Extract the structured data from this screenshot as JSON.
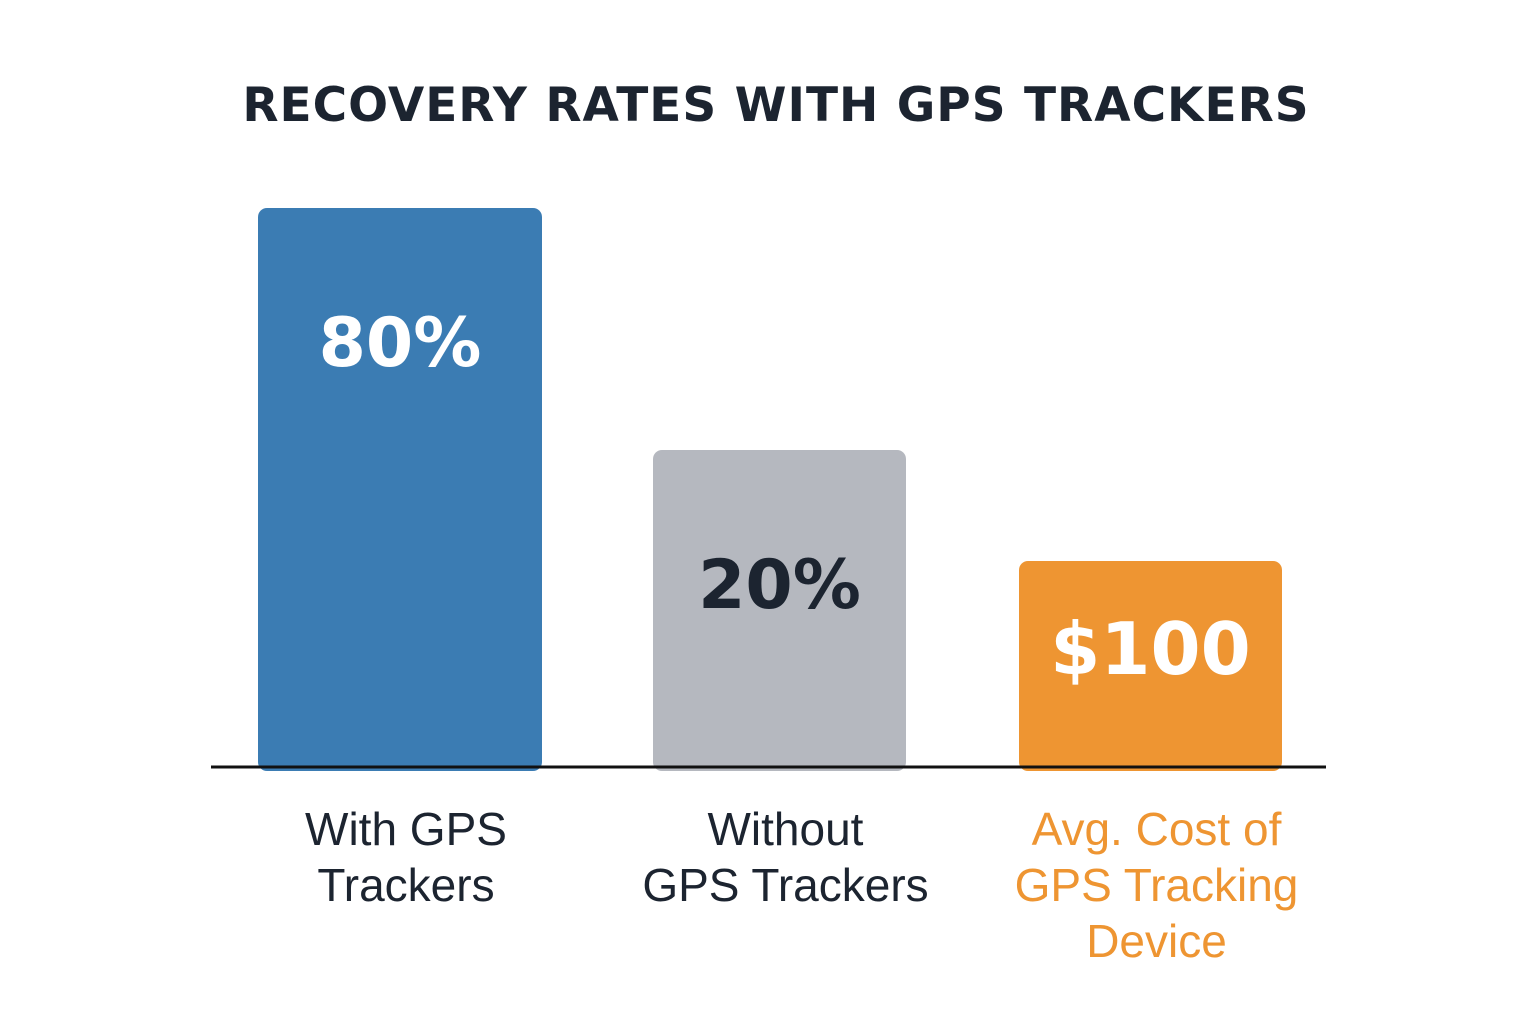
{
  "chart_data": {
    "type": "bar",
    "title": "RECOVERY RATES WITH GPS TRACKERS",
    "categories": [
      "With GPS Trackers",
      "Without GPS Trackers",
      "Avg. Cost of GPS Tracking Device"
    ],
    "category_label_lines": [
      [
        "With GPS",
        "Trackers"
      ],
      [
        "Without",
        "GPS Trackers"
      ],
      [
        "Avg. Cost of",
        "GPS Tracking",
        "Device"
      ]
    ],
    "values": [
      80,
      20,
      100
    ],
    "value_labels": [
      "80%",
      "20%",
      "$100"
    ],
    "units": [
      "%",
      "%",
      "$"
    ],
    "bar_colors": [
      "#3b7cb3",
      "#b5b8bf",
      "#ee9532"
    ],
    "value_label_colors": [
      "#ffffff",
      "#1c2430",
      "#ffffff"
    ],
    "category_label_colors": [
      "#1c2430",
      "#1c2430",
      "#ee9532"
    ],
    "grid": false,
    "legend": "none",
    "title_color": "#1c2430",
    "axis_color": "#111111"
  }
}
